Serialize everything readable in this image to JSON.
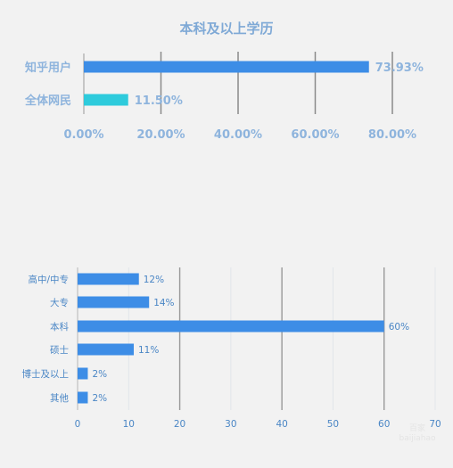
{
  "chart_data": [
    {
      "type": "bar",
      "orientation": "horizontal",
      "title": "本科及以上学历",
      "categories": [
        "知乎用户",
        "全体网民"
      ],
      "values": [
        73.93,
        11.5
      ],
      "value_labels": [
        "73.93%",
        "11.50%"
      ],
      "xlim": [
        0,
        80
      ],
      "xticks": [
        0,
        20,
        40,
        60,
        80
      ],
      "xtick_labels": [
        "0.00%",
        "20.00%",
        "40.00%",
        "60.00%",
        "80.00%"
      ],
      "colors": [
        "#3d8de6",
        "#2ecbdc"
      ],
      "grid": true
    },
    {
      "type": "bar",
      "orientation": "horizontal",
      "title": "",
      "categories": [
        "高中/中专",
        "大专",
        "本科",
        "硕士",
        "博士及以上",
        "其他"
      ],
      "values": [
        12,
        14,
        60,
        11,
        2,
        2
      ],
      "value_labels": [
        "12%",
        "14%",
        "60%",
        "11%",
        "2%",
        "2%"
      ],
      "xlim": [
        0,
        70
      ],
      "xticks": [
        0,
        10,
        20,
        30,
        40,
        50,
        60,
        70
      ],
      "xtick_labels": [
        "0",
        "10",
        "20",
        "30",
        "40",
        "50",
        "60",
        "70"
      ],
      "colors": [
        "#3d8de6"
      ],
      "grid": true
    }
  ],
  "watermark": "百家\nbaijiahao"
}
